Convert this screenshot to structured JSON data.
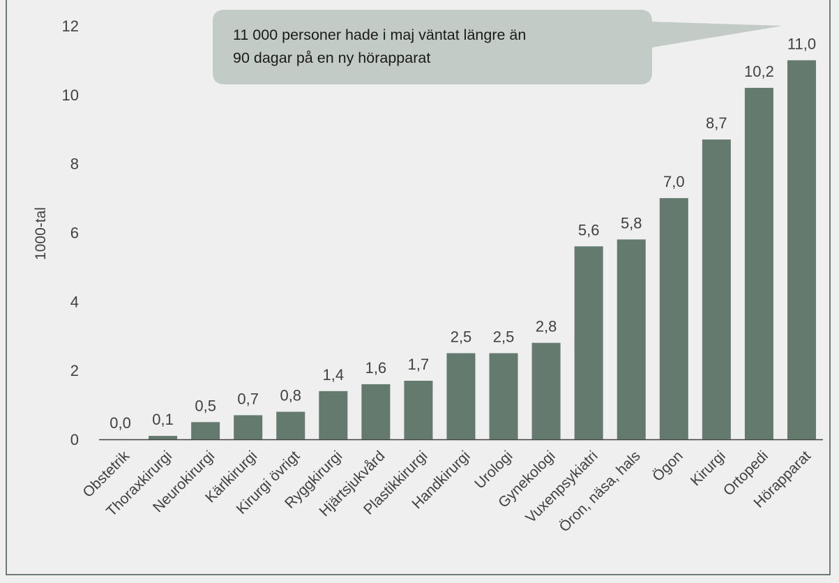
{
  "colors": {
    "bar": "#647a6f",
    "callout": "#c3cbc6",
    "background": "#efefef",
    "axis": "#404040"
  },
  "callout": {
    "line1": "11 000 personer hade i maj väntat längre än",
    "line2": "90 dagar på en ny hörapparat"
  },
  "chart_data": {
    "type": "bar",
    "title": "",
    "xlabel": "",
    "ylabel": "1000-tal",
    "ylim": [
      0,
      12
    ],
    "yticks": [
      "0",
      "2",
      "4",
      "6",
      "8",
      "10",
      "12"
    ],
    "grid": false,
    "categories": [
      "Obstetrik",
      "Thoraxkirurgi",
      "Neurokirurgi",
      "Kärlkirurgi",
      "Kirurgi övrigt",
      "Ryggkirurgi",
      "Hjärtsjukvård",
      "Plastikkirurgi",
      "Handkirurgi",
      "Urologi",
      "Gynekologi",
      "Vuxenpsykiatri",
      "Öron, näsa, hals",
      "Ögon",
      "Kirurgi",
      "Ortopedi",
      "Hörapparat"
    ],
    "values": [
      0.0,
      0.1,
      0.5,
      0.7,
      0.8,
      1.4,
      1.6,
      1.7,
      2.5,
      2.5,
      2.8,
      5.6,
      5.8,
      7.0,
      8.7,
      10.2,
      11.0
    ],
    "value_labels": [
      "0,0",
      "0,1",
      "0,5",
      "0,7",
      "0,8",
      "1,4",
      "1,6",
      "1,7",
      "2,5",
      "2,5",
      "2,8",
      "5,6",
      "5,8",
      "7,0",
      "8,7",
      "10,2",
      "11,0"
    ]
  }
}
